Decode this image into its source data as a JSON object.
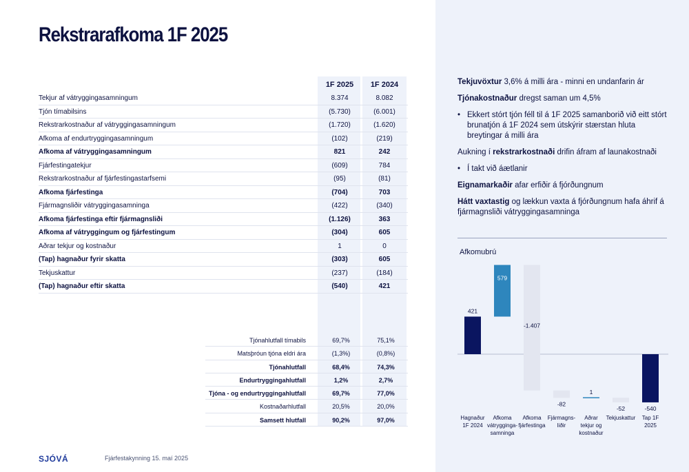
{
  "title": "Rekstrarafkoma 1F 2025",
  "table": {
    "headers": [
      "1F 2025",
      "1F 2024"
    ],
    "rows": [
      {
        "label": "Tekjur af vátryggingasamningum",
        "v1": "8.374",
        "v2": "8.082",
        "bold": false
      },
      {
        "label": "Tjón tímabilsins",
        "v1": "(5.730)",
        "v2": "(6.001)",
        "bold": false
      },
      {
        "label": "Rekstrarkostnaður af vátryggingasamningum",
        "v1": "(1.720)",
        "v2": "(1.620)",
        "bold": false
      },
      {
        "label": "Afkoma af endurtryggingasamningum",
        "v1": "(102)",
        "v2": "(219)",
        "bold": false
      },
      {
        "label": "Afkoma af vátryggingasamningum",
        "v1": "821",
        "v2": "242",
        "bold": true
      },
      {
        "label": "Fjárfestingatekjur",
        "v1": "(609)",
        "v2": "784",
        "bold": false
      },
      {
        "label": "Rekstrarkostnaður af fjárfestingastarfsemi",
        "v1": "(95)",
        "v2": "(81)",
        "bold": false
      },
      {
        "label": "Afkoma fjárfestinga",
        "v1": "(704)",
        "v2": "703",
        "bold": true
      },
      {
        "label": "Fjármagnsliðir vátryggingasamninga",
        "v1": "(422)",
        "v2": "(340)",
        "bold": false
      },
      {
        "label": "Afkoma fjárfestinga eftir fjármagnsliði",
        "v1": "(1.126)",
        "v2": "363",
        "bold": true
      },
      {
        "label": "Afkoma af vátryggingum og fjárfestingum",
        "v1": "(304)",
        "v2": "605",
        "bold": true
      },
      {
        "label": "Aðrar tekjur og kostnaður",
        "v1": "1",
        "v2": "0",
        "bold": false
      },
      {
        "label": "(Tap) hagnaður fyrir skatta",
        "v1": "(303)",
        "v2": "605",
        "bold": true
      },
      {
        "label": "Tekjuskattur",
        "v1": "(237)",
        "v2": "(184)",
        "bold": false
      },
      {
        "label": "(Tap) hagnaður eftir skatta",
        "v1": "(540)",
        "v2": "421",
        "bold": true
      }
    ]
  },
  "ratios": [
    {
      "label": "Tjónahlutfall tímabils",
      "v1": "69,7%",
      "v2": "75,1%",
      "bold": false
    },
    {
      "label": "Matsþróun tjóna eldri ára",
      "v1": "(1,3%)",
      "v2": "(0,8%)",
      "bold": false
    },
    {
      "label": "Tjónahlutfall",
      "v1": "68,4%",
      "v2": "74,3%",
      "bold": true
    },
    {
      "label": "Endurtryggingahlutfall",
      "v1": "1,2%",
      "v2": "2,7%",
      "bold": true
    },
    {
      "label": "Tjóna - og endurtryggingahlutfall",
      "v1": "69,7%",
      "v2": "77,0%",
      "bold": true
    },
    {
      "label": "Kostnaðarhlutfall",
      "v1": "20,5%",
      "v2": "20,0%",
      "bold": false
    },
    {
      "label": "Samsett hlutfall",
      "v1": "90,2%",
      "v2": "97,0%",
      "bold": true
    }
  ],
  "notes": {
    "n1_bold": "Tekjuvöxtur",
    "n1_text": " 3,6% á milli ára - minni en undanfarin ár",
    "n2_bold": "Tjónakostnaður",
    "n2_text": " dregst saman um 4,5%",
    "b1": "Ekkert stórt tjón féll til á 1F 2025 samanborið við eitt stórt brunatjón á 1F 2024 sem útskýrir stærstan hluta breytingar á milli ára",
    "n3_pre": "Aukning í ",
    "n3_bold": "rekstrarkostnaði",
    "n3_text": " drifin áfram af launakostnaði",
    "b2": "Í takt við áætlanir",
    "n4_bold": "Eignamarkaðir",
    "n4_text": " afar erfiðir á fjórðungnum",
    "n5_bold": "Hátt vaxtastig",
    "n5_text": " og lækkun vaxta á fjórðungnum hafa áhrif á fjármagnsliði vátryggingasamninga",
    "bullet_char": "•"
  },
  "chart_title": "Afkomubrú",
  "chart_data": {
    "type": "bar",
    "subtype": "waterfall",
    "categories": [
      "Hagnaður 1F 2024",
      "Afkoma vátrygginga-samninga",
      "Afkoma fjárfestinga",
      "Fjármagns-liðir",
      "Aðrar tekjur og kostnaður",
      "Tekjuskattur",
      "Tap 1F 2025"
    ],
    "values": [
      421,
      579,
      -1407,
      -82,
      1,
      -52,
      -540
    ],
    "labels": [
      "421",
      "579",
      "-1.407",
      "-82",
      "1",
      "-52",
      "-540"
    ],
    "kinds": [
      "total",
      "delta",
      "delta",
      "delta",
      "delta",
      "delta",
      "total"
    ],
    "colors": {
      "total": "#0a1560",
      "positive": "#2e86bd",
      "negative": "#e3e6f0",
      "zero_line": "#2e86bd"
    }
  },
  "footer": {
    "logo": "SJÓVÁ",
    "text": "Fjárfestakynning 15. maí 2025"
  }
}
